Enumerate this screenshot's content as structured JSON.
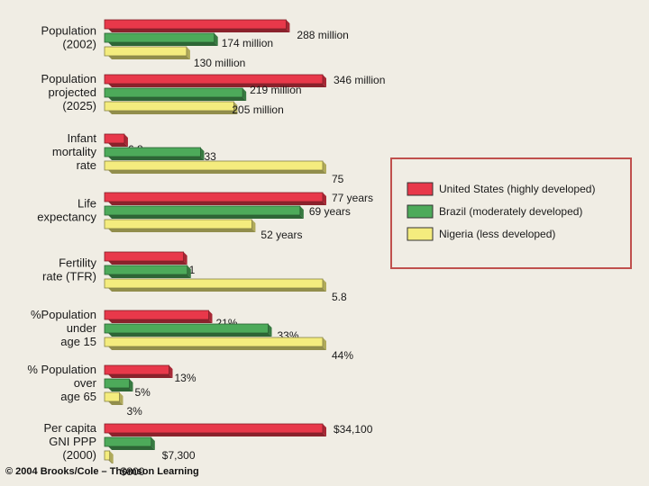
{
  "chart_data": {
    "type": "bar",
    "orientation": "horizontal",
    "series": [
      {
        "name": "United States (highly developed)",
        "color": "#e8384a"
      },
      {
        "name": "Brazil (moderately developed)",
        "color": "#4daa5a"
      },
      {
        "name": "Nigeria (less developed)",
        "color": "#f4ec7e"
      }
    ],
    "categories": [
      {
        "label": [
          "Population",
          "(2002)"
        ],
        "values": [
          288,
          174,
          130
        ],
        "labels": [
          "288 million",
          "174 million",
          "130 million"
        ],
        "max": 346
      },
      {
        "label": [
          "Population",
          "projected",
          "(2025)"
        ],
        "values": [
          346,
          219,
          205
        ],
        "labels": [
          "346 million",
          "219 million",
          "205 million"
        ],
        "max": 346
      },
      {
        "label": [
          "Infant",
          "mortality",
          "rate"
        ],
        "values": [
          6.8,
          33,
          75
        ],
        "labels": [
          "6.8",
          "33",
          "75"
        ],
        "max": 75
      },
      {
        "label": [
          "Life",
          "expectancy"
        ],
        "values": [
          77,
          69,
          52
        ],
        "labels": [
          "77 years",
          "69 years",
          "52 years"
        ],
        "max": 77
      },
      {
        "label": [
          "Fertility",
          "rate (TFR)"
        ],
        "values": [
          2.1,
          2.2,
          5.8
        ],
        "labels": [
          "2.1",
          "2.2",
          "5.8"
        ],
        "max": 5.8
      },
      {
        "label": [
          "%Population",
          "under",
          "age 15"
        ],
        "values": [
          21,
          33,
          44
        ],
        "labels": [
          "21%",
          "33%",
          "44%"
        ],
        "max": 44
      },
      {
        "label": [
          "% Population",
          "over",
          "age 65"
        ],
        "values": [
          13,
          5,
          3
        ],
        "labels": [
          "13%",
          "5%",
          "3%"
        ],
        "max": 44
      },
      {
        "label": [
          "Per capita",
          "GNI PPP",
          "(2000)"
        ],
        "values": [
          34100,
          7300,
          800
        ],
        "labels": [
          "$34,100",
          "$7,300",
          "$800"
        ],
        "max": 34100
      }
    ],
    "legend_position": "right",
    "grid": false
  },
  "credit": "© 2004 Brooks/Cole – Thomson Learning"
}
